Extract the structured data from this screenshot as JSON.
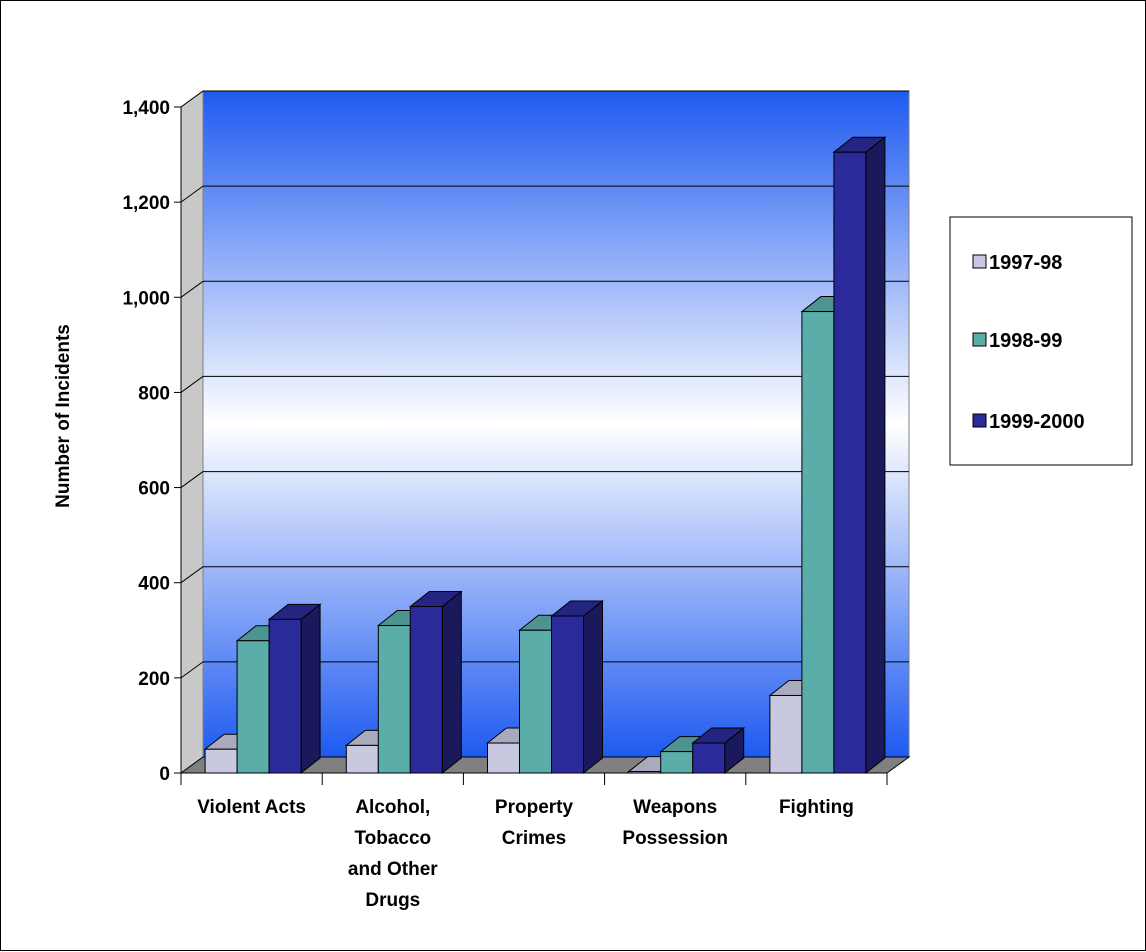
{
  "chart_data": {
    "type": "bar",
    "categories": [
      [
        "Violent Acts"
      ],
      [
        "Alcohol,",
        "Tobacco",
        "and Other",
        "Drugs"
      ],
      [
        "Property",
        "Crimes"
      ],
      [
        "Weapons",
        "Possession"
      ],
      [
        "Fighting"
      ]
    ],
    "series": [
      {
        "name": "1997-98",
        "values": [
          50,
          58,
          63,
          3,
          163
        ],
        "color": "#C8C8E0"
      },
      {
        "name": "1998-99",
        "values": [
          278,
          310,
          300,
          45,
          970
        ],
        "color": "#5AADA8"
      },
      {
        "name": "1999-2000",
        "values": [
          323,
          350,
          330,
          63,
          1305
        ],
        "color": "#2A2A9A"
      }
    ],
    "ylabel": "Number of Incidents",
    "ylim": [
      0,
      1400
    ],
    "yticks": [
      "0",
      "200",
      "400",
      "600",
      "800",
      "1,000",
      "1,200",
      "1,400"
    ],
    "grid": true,
    "legend_position": "right",
    "background_gradient": [
      "#1E5AF0",
      "#FFFFFF"
    ]
  }
}
